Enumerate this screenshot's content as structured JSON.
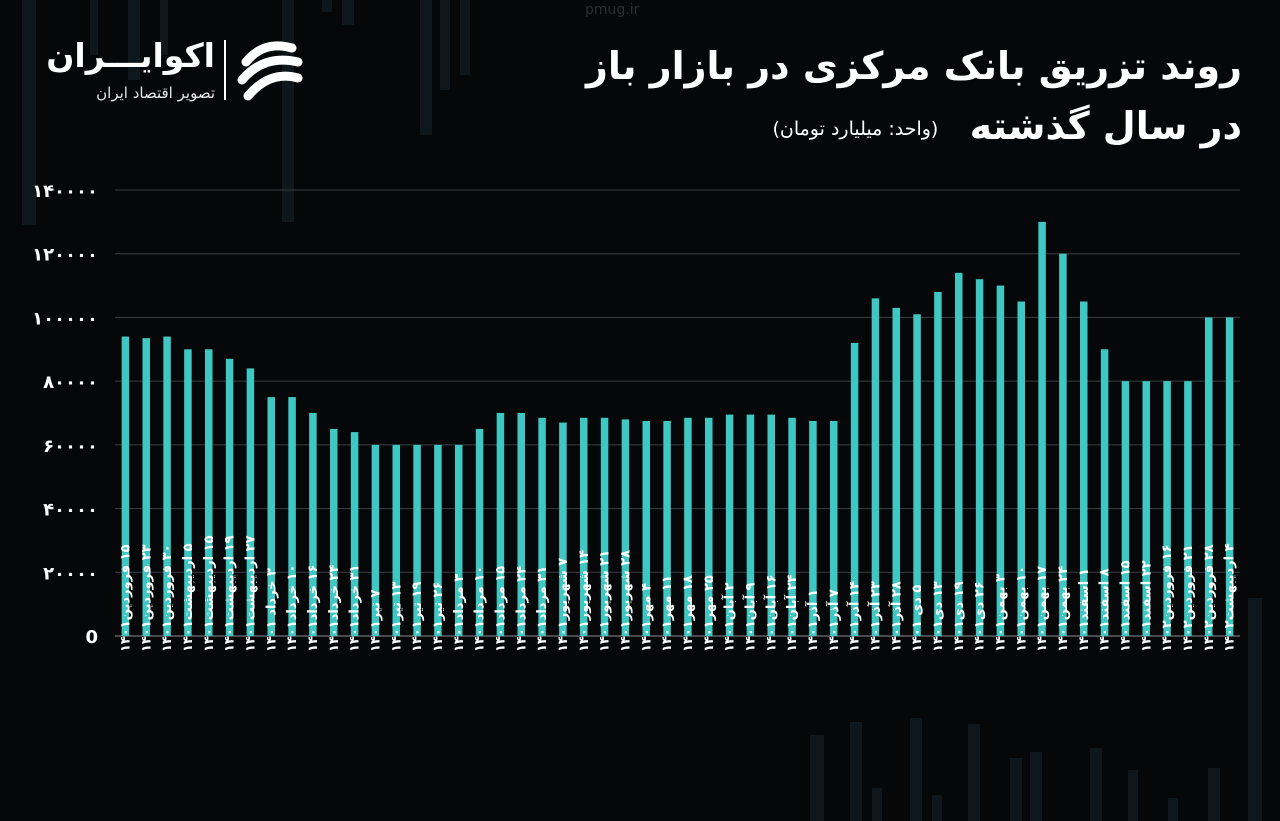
{
  "title_line1": "روند تزریق بانک مرکزی در بازار باز",
  "title_line2": "در سال گذشته",
  "unit": "(واحد: میلیارد تومان)",
  "watermark": "pmug.ir",
  "logo": {
    "name": "اکوایـــران",
    "tagline": "تصویر اقتصاد ایران"
  },
  "colors": {
    "bar": "#3fc8c3",
    "background": "#050708",
    "grid": "#3a3f44",
    "text": "#ffffff"
  },
  "chart_data": {
    "type": "bar",
    "title": "روند تزریق بانک مرکزی در بازار باز در سال گذشته",
    "ylim": [
      0,
      140000
    ],
    "yticks": [
      0,
      20000,
      40000,
      60000,
      80000,
      100000,
      120000,
      140000
    ],
    "ytick_labels": [
      "0",
      "۲۰۰۰۰",
      "۴۰۰۰۰",
      "۶۰۰۰۰",
      "۸۰۰۰۰",
      "۱۰۰۰۰۰",
      "۱۲۰۰۰۰",
      "۱۴۰۰۰۰"
    ],
    "grid": true,
    "categories": [
      "۱۵ فروردین۱۴۰۱",
      "۲۳ فروردین۱۴۰۱",
      "۳۰ فروردین۱۴۰۱",
      "۵ اردیبهشت۱۴۰۱",
      "۱۵ اردیبهشت۱۴۰۱",
      "۱۹ اردیبهشت۱۴۰۱",
      "۲۷ اردیبهشت۱۴۰۱",
      "۳ خرداد ۱۴۰۱",
      "۱۰ خرداد۱۴۰۱",
      "۱۶ خرداد۱۴۰۱",
      "۲۴ خرداد۱۴۰۱",
      "۳۱ خرداد۱۴۰۱",
      "۷ تیر۱۴۰۱",
      "۱۳ تیر۱۴۰۱",
      "۱۹ تیر۱۴۰۱",
      "۲۶ تیر۱۴۰۱",
      "۳ مرداد۱۴۰۱",
      "۱۰ مرداد۱۴۰۱",
      "۱۵ مرداد۱۴۰۱",
      "۲۴ مرداد۱۴۰۱",
      "۳۱ مرداد۱۴۰۱",
      "۷ شهریور۱۴۰۱",
      "۱۴ شهریور۱۴۰۱",
      "۲۱ شهریور۱۴۰۱",
      "۲۸ شهریور۱۴۰۱",
      "۴ مهر۱۴۰۱",
      "۱۱ مهر۱۴۰۱",
      "۱۸ مهر۱۴۰۱",
      "۲۵ مهر۱۴۰۱",
      "۲ آبان۱۴۰۱",
      "۹ آبان۱۴۰۱",
      "۱۶ آبان۱۴۰۱",
      "۲۴ آبان۱۴۰۱",
      "۱ آذر۱۴۰۱",
      "۷ آذر۱۴۰۱",
      "۱۴ آذر۱۴۰۱",
      "۲۳ آذر۱۴۰۱",
      "۲۸ آذر۱۴۰۱",
      "۵ دی ۱۴۰۱",
      "۱۳ دی۱۴۰۱",
      "۱۹ دی۱۴۰۱",
      "۲۶ دی۱۴۰۱",
      "۳ بهمن۱۴۰۱",
      "۱۰ بهمن۱۴۰۱",
      "۱۷ بهمن۱۴۰۱",
      "۲۴ بهمن۱۴۰۱",
      "۱ اسفند۱۴۰۱",
      "۸ اسفند۱۴۰۱",
      "۱۵ اسفند۱۴۰۱",
      "۲۲ اسفند۱۴۰۱",
      "۱۶ فروردین۱۴۰۲",
      "۲۱ فروردین۱۴۰۲",
      "۲۸ فروردین۱۴۰۲",
      "۴ اردیبهشت۱۴۰۲"
    ],
    "values": [
      94000,
      93500,
      94000,
      90000,
      90000,
      87000,
      84000,
      75000,
      75000,
      70000,
      65000,
      64000,
      60000,
      60000,
      60000,
      60000,
      60000,
      65000,
      70000,
      70000,
      68500,
      67000,
      68500,
      68500,
      68000,
      67500,
      67500,
      68500,
      68500,
      69500,
      69500,
      69500,
      68500,
      67500,
      67500,
      92000,
      106000,
      103000,
      101000,
      108000,
      114000,
      112000,
      110000,
      105000,
      130000,
      120000,
      105000,
      90000,
      80000,
      80000,
      80000,
      80000,
      100000,
      100000
    ]
  }
}
